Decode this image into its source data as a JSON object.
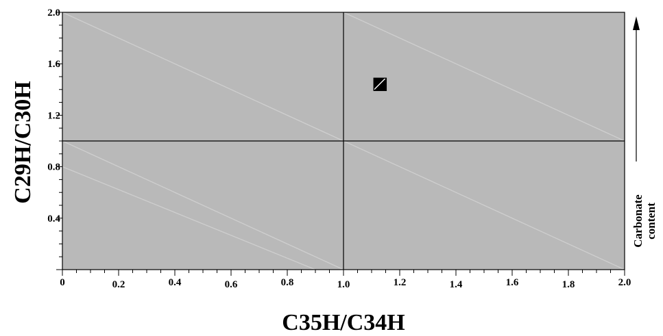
{
  "chart_data": {
    "type": "scatter",
    "title": "",
    "xlabel": "C35H/C34H",
    "ylabel": "C29H/C30H",
    "xlim": [
      0,
      2.0
    ],
    "ylim": [
      0,
      2.0
    ],
    "x_tick_labels": [
      "0",
      "0.2",
      "0.4",
      "0.6",
      "0.8",
      "1.0",
      "1.2",
      "1.4",
      "1.6",
      "1.8",
      "2.0"
    ],
    "x_tick_values": [
      0,
      0.2,
      0.4,
      0.6,
      0.8,
      1.0,
      1.2,
      1.4,
      1.6,
      1.8,
      2.0
    ],
    "y_tick_labels": [
      "0.4",
      "0.8",
      "1.2",
      "1.6",
      "2.0"
    ],
    "y_tick_values": [
      0.4,
      0.8,
      1.2,
      1.6,
      2.0
    ],
    "reference_lines": {
      "x": 1.0,
      "y": 1.0
    },
    "diagonal_lines": [
      {
        "from": [
          0,
          2.0
        ],
        "to": [
          1.0,
          1.0
        ]
      },
      {
        "from": [
          1.0,
          2.0
        ],
        "to": [
          2.0,
          1.0
        ]
      },
      {
        "from": [
          0,
          1.0
        ],
        "to": [
          1.0,
          0
        ]
      },
      {
        "from": [
          0,
          0.8
        ],
        "to": [
          0.9,
          0
        ]
      },
      {
        "from": [
          1.0,
          1.0
        ],
        "to": [
          2.0,
          0
        ]
      }
    ],
    "points": [
      {
        "x": 1.13,
        "y": 1.44,
        "marker": "square"
      }
    ],
    "grid": false,
    "annotation": {
      "lines": [
        "Carbonate",
        "content"
      ]
    },
    "colors": {
      "plot_background": "#b9b9b9",
      "diagonal": "#cfcfcf",
      "axis": "#000000",
      "marker": "#000000"
    }
  }
}
